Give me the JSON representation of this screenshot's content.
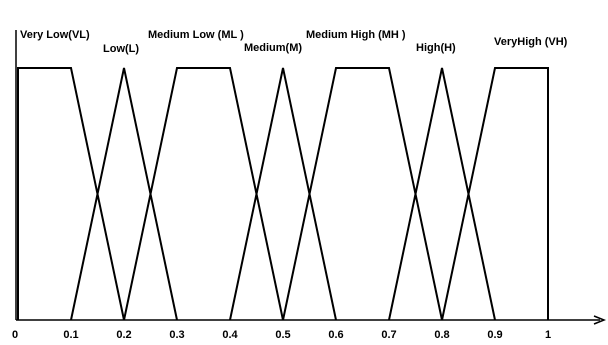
{
  "chart_data": {
    "type": "line",
    "title": "",
    "xlabel": "",
    "ylabel": "",
    "xlim": [
      0,
      1
    ],
    "ylim": [
      0,
      1
    ],
    "grid": false,
    "legend": "none",
    "x_ticks": [
      "0",
      "0.1",
      "0.2",
      "0.3",
      "0.4",
      "0.5",
      "0.6",
      "0.7",
      "0.8",
      "0.9",
      "1"
    ],
    "series": [
      {
        "name": "Very Low(VL)",
        "shape": "trapezoid",
        "x": [
          0.0,
          0.0,
          0.1,
          0.2
        ],
        "y": [
          0,
          1,
          1,
          0
        ]
      },
      {
        "name": "Low(L)",
        "shape": "triangle",
        "x": [
          0.1,
          0.2,
          0.3
        ],
        "y": [
          0,
          1,
          0
        ]
      },
      {
        "name": "Medium Low (ML )",
        "shape": "trapezoid",
        "x": [
          0.2,
          0.3,
          0.4,
          0.5
        ],
        "y": [
          0,
          1,
          1,
          0
        ]
      },
      {
        "name": "Medium(M)",
        "shape": "triangle",
        "x": [
          0.4,
          0.5,
          0.6
        ],
        "y": [
          0,
          1,
          0
        ]
      },
      {
        "name": "Medium High (MH )",
        "shape": "trapezoid",
        "x": [
          0.5,
          0.6,
          0.7,
          0.8
        ],
        "y": [
          0,
          1,
          1,
          0
        ]
      },
      {
        "name": "High(H)",
        "shape": "triangle",
        "x": [
          0.7,
          0.8,
          0.9
        ],
        "y": [
          0,
          1,
          0
        ]
      },
      {
        "name": "VeryHigh (VH)",
        "shape": "trapezoid",
        "x": [
          0.8,
          0.9,
          1.0,
          1.0
        ],
        "y": [
          0,
          1,
          1,
          0
        ]
      }
    ]
  }
}
